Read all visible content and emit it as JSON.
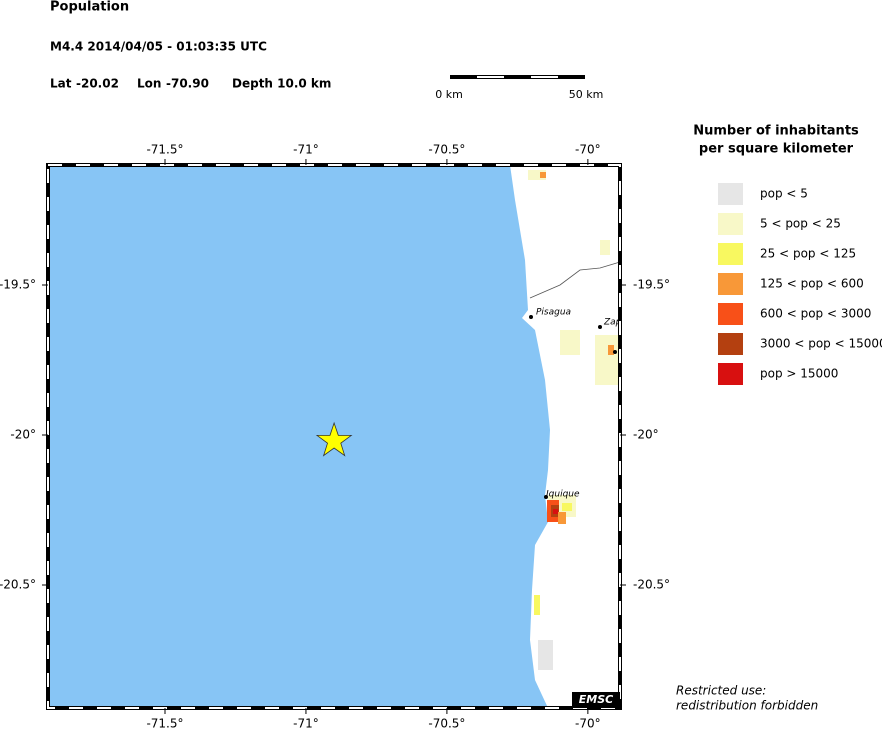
{
  "header": {
    "title": "Population",
    "event": "M4.4  2014/04/05 - 01:03:35 UTC",
    "latitude": {
      "label": "Lat",
      "value": -20.02,
      "value_label": "-20.02"
    },
    "longitude": {
      "label": "Lon",
      "value": -70.9,
      "value_label": "-70.90"
    },
    "depth": "Depth  10.0 km"
  },
  "scale_bar": {
    "start": "0 km",
    "end": "50 km"
  },
  "legend": {
    "title": [
      "Number of inhabitants",
      "per square kilometer"
    ],
    "items": [
      {
        "label": "pop < 5",
        "color": "#e6e6e6"
      },
      {
        "label": "5 < pop < 25",
        "color": "#f8f8c8"
      },
      {
        "label": "25 < pop < 125",
        "color": "#f8f860"
      },
      {
        "label": "125 < pop < 600",
        "color": "#f89838"
      },
      {
        "label": "600 < pop < 3000",
        "color": "#f85018"
      },
      {
        "label": "3000 < pop < 15000",
        "color": "#b44010"
      },
      {
        "label": "pop > 15000",
        "color": "#d81010"
      }
    ]
  },
  "map": {
    "lonlim": [
      -71.915,
      -69.886
    ],
    "latlim": [
      -19.1,
      -20.91
    ],
    "lon_ticks": [
      {
        "value": -71.5,
        "label": "-71.5°"
      },
      {
        "value": -71,
        "label": "-71°"
      },
      {
        "value": -70.5,
        "label": "-70.5°"
      },
      {
        "value": -70,
        "label": "-70°"
      }
    ],
    "lat_ticks": [
      {
        "value": -19.5,
        "label": "-19.5°"
      },
      {
        "value": -20,
        "label": "-20°"
      },
      {
        "value": -20.5,
        "label": "-20.5°"
      }
    ],
    "places": [
      "Pisagua",
      "Zap",
      "Iquique"
    ]
  },
  "footer": {
    "note": [
      "Restricted use:",
      "redistribution forbidden"
    ],
    "logo": "EMSC"
  }
}
